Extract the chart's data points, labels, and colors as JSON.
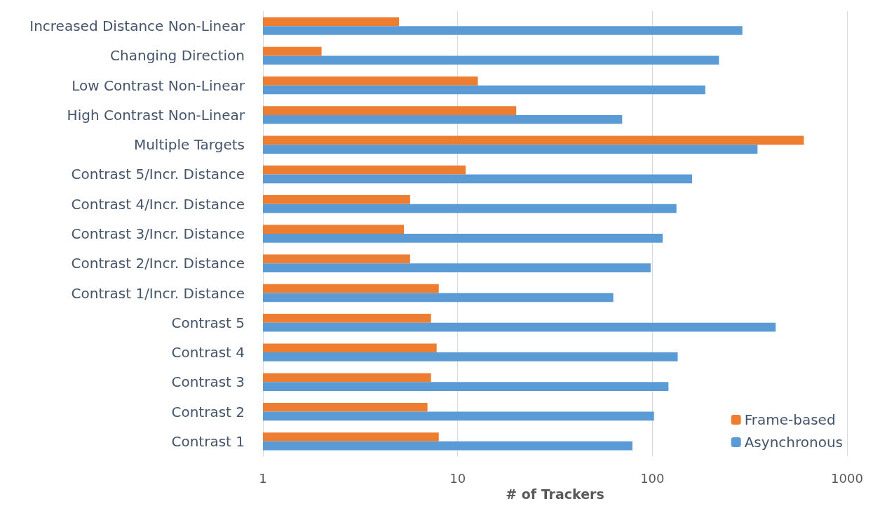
{
  "chart_data": {
    "type": "bar",
    "orientation": "horizontal",
    "xlabel": "# of Trackers",
    "categories": [
      "Increased Distance Non-Linear",
      "Changing Direction",
      "Low Contrast Non-Linear",
      "High Contrast Non-Linear",
      "Multiple Targets",
      "Contrast 5/Incr. Distance",
      "Contrast 4/Incr. Distance",
      "Contrast 3/Incr. Distance",
      "Contrast 2/Incr. Distance",
      "Contrast 1/Incr. Distance",
      "Contrast 5",
      "Contrast 4",
      "Contrast 3",
      "Contrast 2",
      "Contrast 1"
    ],
    "series": [
      {
        "name": "Frame-based",
        "color": "#ed7d31",
        "values": [
          5,
          2,
          12.7,
          20,
          600,
          11,
          5.7,
          5.3,
          5.7,
          8,
          7.3,
          7.8,
          7.3,
          7,
          8
        ]
      },
      {
        "name": "Asynchronous",
        "color": "#5b9bd5",
        "values": [
          290,
          220,
          187,
          70,
          347,
          160,
          133,
          113,
          98,
          63,
          430,
          135,
          121,
          102,
          79
        ]
      }
    ],
    "log": "x",
    "xlim": [
      1,
      1000
    ],
    "xticks": [
      1,
      10,
      100,
      1000
    ],
    "grid": "x",
    "legend": "bottom right"
  }
}
